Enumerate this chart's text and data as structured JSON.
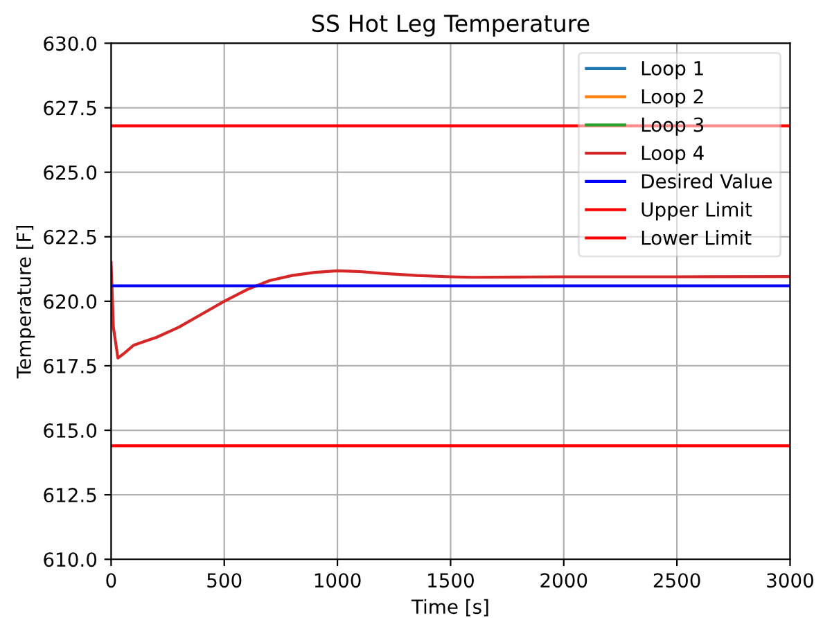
{
  "chart_data": {
    "type": "line",
    "title": "SS Hot Leg Temperature",
    "xlabel": "Time [s]",
    "ylabel": "Temperature [F]",
    "x": [
      0,
      10,
      30,
      60,
      100,
      150,
      200,
      300,
      400,
      500,
      600,
      700,
      800,
      900,
      1000,
      1100,
      1200,
      1350,
      1500,
      1600,
      1800,
      2000,
      2500,
      3000
    ],
    "series": [
      {
        "name": "Loop 1",
        "color": "#1f77b4",
        "values": [
          null,
          null,
          null,
          null,
          null,
          null,
          null,
          null,
          null,
          null,
          null,
          null,
          null,
          null,
          null,
          null,
          null,
          null,
          null,
          null,
          null,
          null,
          null,
          null
        ]
      },
      {
        "name": "Loop 2",
        "color": "#ff7f0e",
        "values": [
          null,
          null,
          null,
          null,
          null,
          null,
          null,
          null,
          null,
          null,
          null,
          null,
          null,
          null,
          null,
          null,
          null,
          null,
          null,
          null,
          null,
          null,
          null,
          null
        ]
      },
      {
        "name": "Loop 3",
        "color": "#2ca02c",
        "values": [
          null,
          null,
          null,
          null,
          null,
          null,
          null,
          null,
          null,
          null,
          null,
          null,
          null,
          null,
          null,
          null,
          null,
          null,
          null,
          null,
          null,
          null,
          null,
          null
        ]
      },
      {
        "name": "Loop 4",
        "color": "#d62728",
        "values": [
          621.5,
          619.0,
          617.8,
          618.0,
          618.3,
          618.45,
          618.6,
          619.0,
          619.5,
          620.0,
          620.45,
          620.8,
          621.0,
          621.12,
          621.18,
          621.15,
          621.08,
          621.0,
          620.95,
          620.93,
          620.94,
          620.95,
          620.95,
          620.96
        ]
      },
      {
        "name": "Desired Value",
        "color": "#0000ff",
        "values": [
          620.6,
          620.6,
          620.6,
          620.6,
          620.6,
          620.6,
          620.6,
          620.6,
          620.6,
          620.6,
          620.6,
          620.6,
          620.6,
          620.6,
          620.6,
          620.6,
          620.6,
          620.6,
          620.6,
          620.6,
          620.6,
          620.6,
          620.6,
          620.6
        ]
      },
      {
        "name": "Upper Limit",
        "color": "#ff0000",
        "values": [
          626.8,
          626.8,
          626.8,
          626.8,
          626.8,
          626.8,
          626.8,
          626.8,
          626.8,
          626.8,
          626.8,
          626.8,
          626.8,
          626.8,
          626.8,
          626.8,
          626.8,
          626.8,
          626.8,
          626.8,
          626.8,
          626.8,
          626.8,
          626.8
        ]
      },
      {
        "name": "Lower Limit",
        "color": "#ff0000",
        "values": [
          614.4,
          614.4,
          614.4,
          614.4,
          614.4,
          614.4,
          614.4,
          614.4,
          614.4,
          614.4,
          614.4,
          614.4,
          614.4,
          614.4,
          614.4,
          614.4,
          614.4,
          614.4,
          614.4,
          614.4,
          614.4,
          614.4,
          614.4,
          614.4
        ]
      }
    ],
    "xlim": [
      0,
      3000
    ],
    "xticks": [
      0,
      500,
      1000,
      1500,
      2000,
      2500,
      3000
    ],
    "ylim": [
      610,
      630
    ],
    "yticks": [
      {
        "value": 610,
        "label": "610.0"
      },
      {
        "value": 612.5,
        "label": "612.5"
      },
      {
        "value": 615,
        "label": "615.0"
      },
      {
        "value": 617.5,
        "label": "617.5"
      },
      {
        "value": 620,
        "label": "620.0"
      },
      {
        "value": 622.5,
        "label": "622.5"
      },
      {
        "value": 625,
        "label": "625.0"
      },
      {
        "value": 627.5,
        "label": "627.5"
      },
      {
        "value": 630,
        "label": "630.0"
      }
    ],
    "grid": true,
    "legend": "top right"
  }
}
